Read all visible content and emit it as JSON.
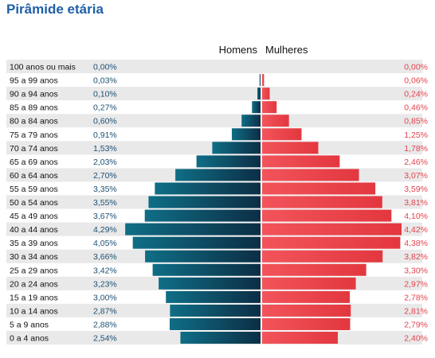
{
  "page": {
    "title": "Pirâmide etária"
  },
  "colors": {
    "title": "#1f5fa8",
    "men_dark": "#0c2e45",
    "men_light": "#0f6e86",
    "women_light": "#f2545b",
    "women_dark": "#e3373f",
    "row_stripe": "#e9e9e9",
    "men_text": "#1c4f73",
    "women_text": "#e4424b"
  },
  "chart_data": {
    "type": "bar",
    "orientation": "horizontal-pyramid",
    "title": "Pirâmide etária",
    "legend": [
      "Homens",
      "Mulheres"
    ],
    "legend_position": "top-center",
    "categories": [
      "100 anos ou mais",
      "95 a 99 anos",
      "90 a 94 anos",
      "85 a 89 anos",
      "80 a 84 anos",
      "75 a 79 anos",
      "70 a 74 anos",
      "65 a 69 anos",
      "60 a 64 anos",
      "55 a 59 anos",
      "50 a 54 anos",
      "45 a 49 anos",
      "40 a 44 anos",
      "35 a 39 anos",
      "30 a 34 anos",
      "25 a 29 anos",
      "20 a 24 anos",
      "15 a 19 anos",
      "10 a 14 anos",
      "5 a 9 anos",
      "0 a 4 anos"
    ],
    "series": [
      {
        "name": "Homens",
        "values": [
          0.0,
          0.03,
          0.1,
          0.27,
          0.6,
          0.91,
          1.53,
          2.03,
          2.7,
          3.35,
          3.55,
          3.67,
          4.29,
          4.05,
          3.66,
          3.42,
          3.23,
          3.0,
          2.87,
          2.88,
          2.54
        ],
        "labels": [
          "0,00%",
          "0,03%",
          "0,10%",
          "0,27%",
          "0,60%",
          "0,91%",
          "1,53%",
          "2,03%",
          "2,70%",
          "3,35%",
          "3,55%",
          "3,67%",
          "4,29%",
          "4,05%",
          "3,66%",
          "3,42%",
          "3,23%",
          "3,00%",
          "2,87%",
          "2,88%",
          "2,54%"
        ]
      },
      {
        "name": "Mulheres",
        "values": [
          0.0,
          0.06,
          0.24,
          0.46,
          0.85,
          1.25,
          1.78,
          2.46,
          3.07,
          3.59,
          3.81,
          4.1,
          4.42,
          4.38,
          3.82,
          3.3,
          2.97,
          2.78,
          2.81,
          2.79,
          2.4
        ],
        "labels": [
          "0,00%",
          "0,06%",
          "0,24%",
          "0,46%",
          "0,85%",
          "1,25%",
          "1,78%",
          "2,46%",
          "3,07%",
          "3,59%",
          "3,81%",
          "4,10%",
          "4,42%",
          "4,38%",
          "3,82%",
          "3,30%",
          "2,97%",
          "2,78%",
          "2,81%",
          "2,79%",
          "2,40%"
        ]
      }
    ],
    "xlim": [
      0,
      4.42
    ],
    "grid": false
  }
}
